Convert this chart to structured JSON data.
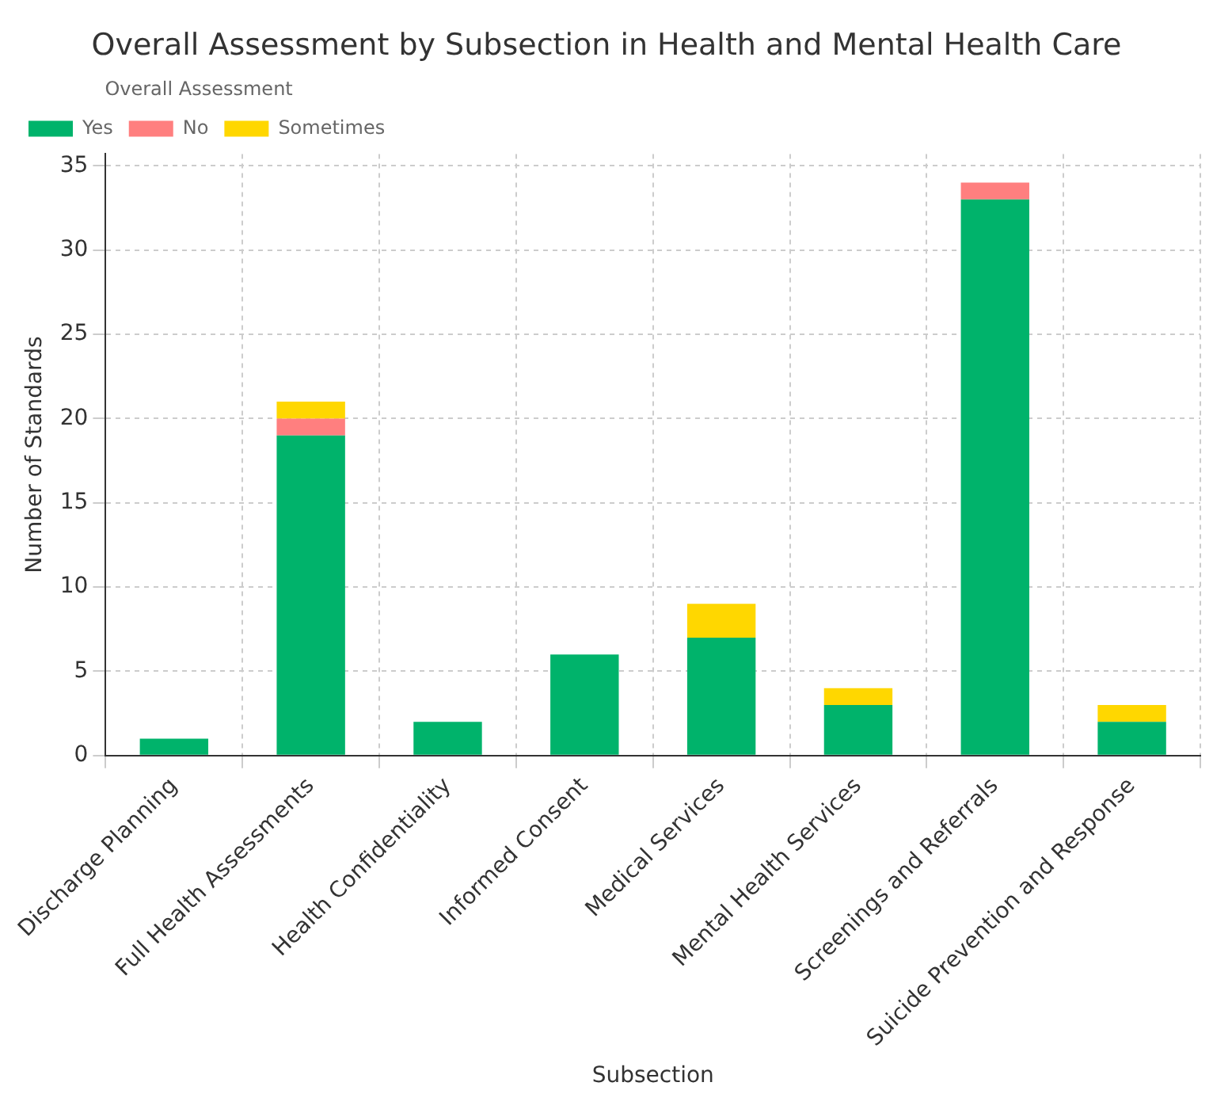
{
  "chart_data": {
    "type": "bar",
    "title": "Overall Assessment by Subsection in Health and Mental Health Care",
    "xlabel": "Subsection",
    "ylabel": "Number of Standards",
    "legend_title": "Overall Assessment",
    "categories": [
      "Discharge Planning",
      "Full Health Assessments",
      "Health Confidentiality",
      "Informed Consent",
      "Medical Services",
      "Mental Health Services",
      "Screenings and Referrals",
      "Suicide Prevention and Response"
    ],
    "series": [
      {
        "name": "Yes",
        "color": "#00b36b",
        "values": [
          1,
          19,
          2,
          6,
          7,
          3,
          33,
          2
        ]
      },
      {
        "name": "No",
        "color": "#ff7f7f",
        "values": [
          0,
          1,
          0,
          0,
          0,
          0,
          1,
          0
        ]
      },
      {
        "name": "Sometimes",
        "color": "#ffd700",
        "values": [
          0,
          1,
          0,
          0,
          2,
          1,
          0,
          1
        ]
      }
    ],
    "stacked": true,
    "ylim": [
      0,
      35.7
    ],
    "yticks": [
      0,
      5,
      10,
      15,
      20,
      25,
      30,
      35
    ],
    "grid": true,
    "legend": "top left"
  }
}
